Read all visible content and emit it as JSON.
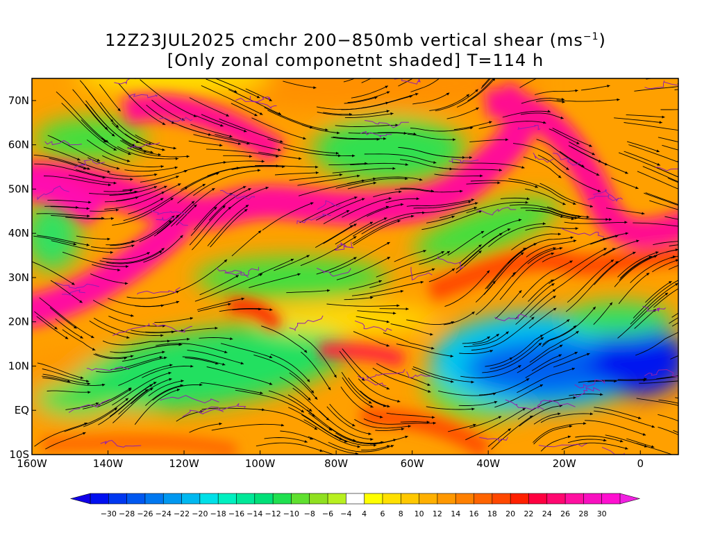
{
  "title": {
    "line1_prefix": "12Z23JUL2025 cmchr 200−850mb vertical shear (ms",
    "line1_sup": "−1",
    "line1_suffix": ")",
    "line2": "[Only zonal componetnt shaded] T=114 h"
  },
  "map": {
    "lon_range": [
      -160,
      10
    ],
    "lat_range": [
      -10,
      75
    ],
    "x_ticks": [
      "160W",
      "140W",
      "120W",
      "100W",
      "80W",
      "60W",
      "40W",
      "20W",
      "0"
    ],
    "y_ticks": [
      "70N",
      "60N",
      "50N",
      "40N",
      "30N",
      "20N",
      "10N",
      "EQ",
      "10S"
    ]
  },
  "colorbar": {
    "labels": [
      "−30",
      "−28",
      "−26",
      "−24",
      "−22",
      "−20",
      "−18",
      "−16",
      "−14",
      "−12",
      "−10",
      "−8",
      "−6",
      "−4",
      "4",
      "6",
      "8",
      "10",
      "12",
      "14",
      "16",
      "18",
      "20",
      "22",
      "24",
      "26",
      "28",
      "30"
    ],
    "colors": [
      "#0010f0",
      "#0038f0",
      "#0058f0",
      "#0078f0",
      "#0098f0",
      "#00b8f0",
      "#00e0e8",
      "#00f0c0",
      "#00e898",
      "#00e078",
      "#20e050",
      "#60e030",
      "#90e020",
      "#b8f020",
      "#ffffff",
      "#ffff00",
      "#ffe000",
      "#ffc800",
      "#ffb000",
      "#ff9800",
      "#ff8000",
      "#ff6400",
      "#ff4800",
      "#ff2000",
      "#ff0040",
      "#ff0870",
      "#ff10a0",
      "#f810c0",
      "#ff10d0"
    ]
  },
  "colors": {
    "stream": "#000000",
    "contour": "#9020b0"
  }
}
